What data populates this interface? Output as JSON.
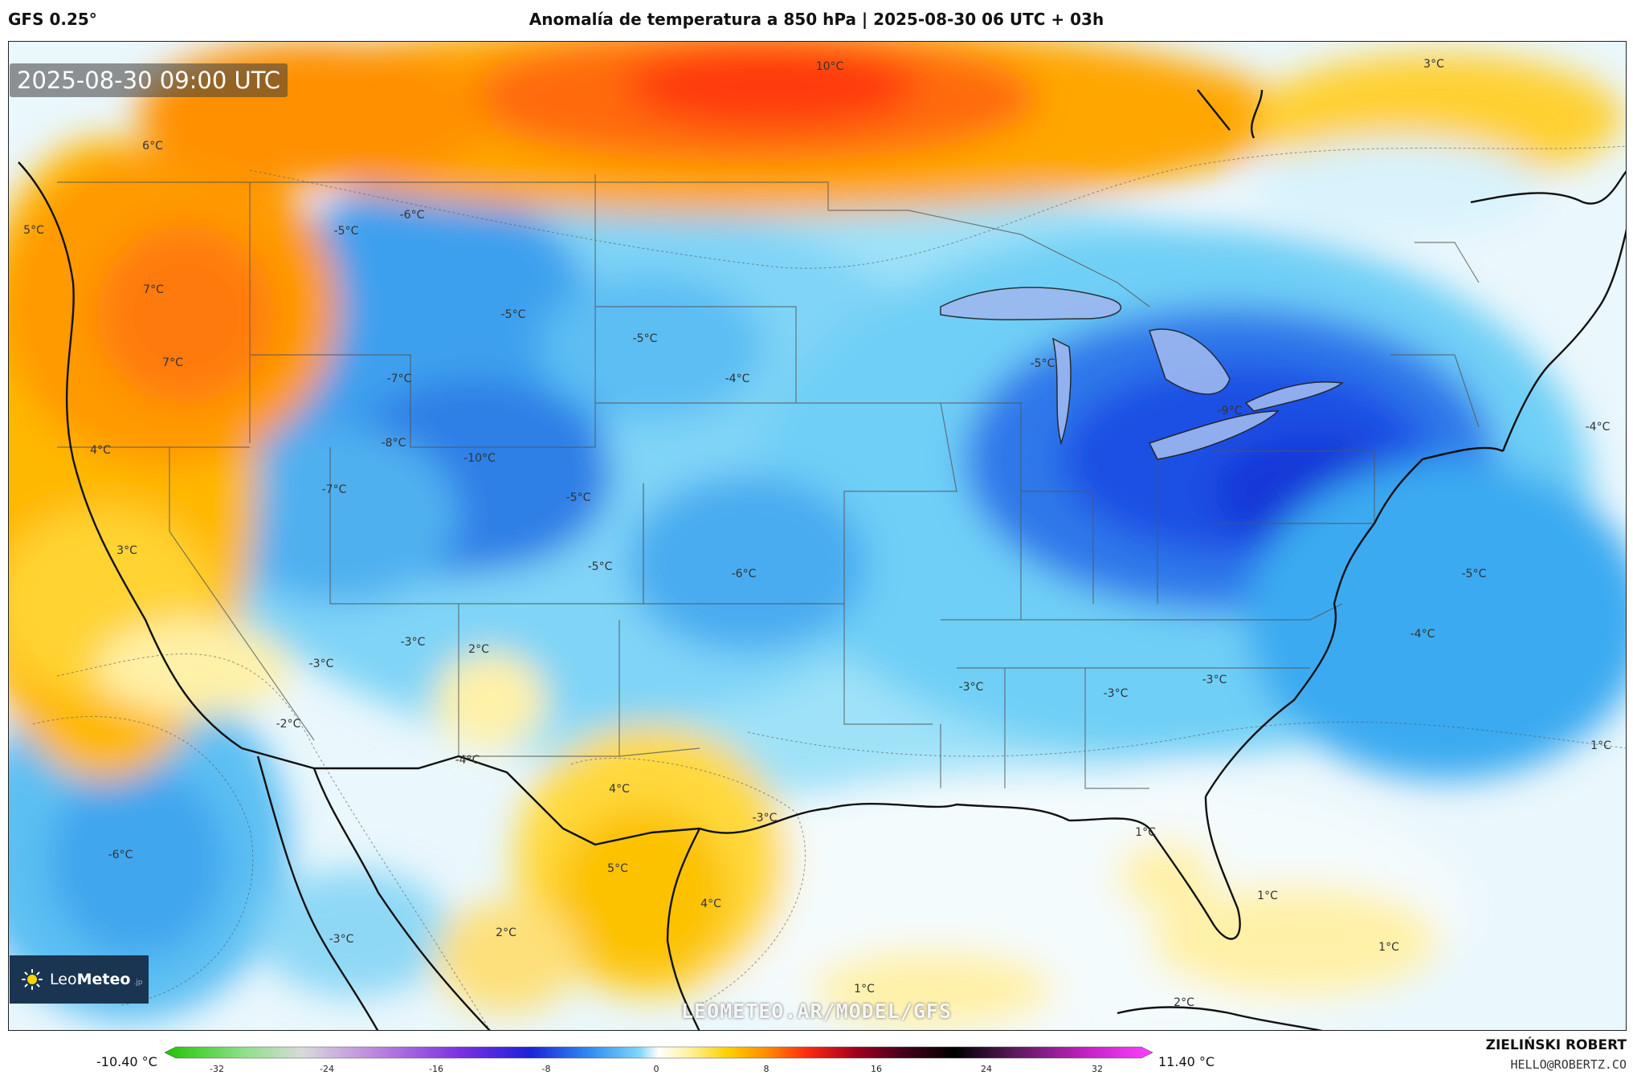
{
  "header": {
    "model": "GFS 0.25°",
    "title": "Anomalía de temperatura a 850 hPa | 2025-08-30 06 UTC + 03h"
  },
  "map": {
    "timestamp": "2025-08-30 09:00 UTC",
    "watermark": "LEOMETEO.AR/MODEL/GFS",
    "logo": {
      "text_light": "Leo",
      "text_bold": "Meteo",
      "suffix": ".jp",
      "icon": "sun-logo-icon"
    },
    "contour_labels": [
      "10°C",
      "3°C",
      "6°C",
      "5°C",
      "-6°C",
      "-5°C",
      "7°C",
      "7°C",
      "-5°C",
      "-5°C",
      "-4°C",
      "-7°C",
      "-5°C",
      "-9°C",
      "4°C",
      "-8°C",
      "-10°C",
      "-7°C",
      "-5°C",
      "-4°C",
      "3°C",
      "-5°C",
      "-6°C",
      "-5°C",
      "-3°C",
      "-4°C",
      "2°C",
      "-3°C",
      "-3°C",
      "-3°C",
      "-3°C",
      "-2°C",
      "-4°C",
      "1°C",
      "4°C",
      "-3°C",
      "1°C",
      "-6°C",
      "5°C",
      "4°C",
      "1°C",
      "2°C",
      "1°C",
      "-3°C",
      "1°C",
      "2°C"
    ],
    "palette": {
      "deep_blue": "#1f3fe0",
      "blue": "#3a8cf0",
      "light_blue": "#5cc6f5",
      "pale_blue": "#b7ecfb",
      "white": "#ffffff",
      "pale_yellow": "#fff2a8",
      "yellow": "#fcd000",
      "orange": "#ff9e00",
      "red": "#ff4a10",
      "ocean_pale": "#eef7fb"
    }
  },
  "colorbar": {
    "min_label": "-10.40 °C",
    "max_label": "11.40 °C",
    "ticks": [
      "-32",
      "-24",
      "-16",
      "-8",
      "0",
      "8",
      "16",
      "24",
      "32"
    ]
  },
  "credits": {
    "name": "ZIELIŃSKI ROBERT",
    "email": "HELLO@ROBERTZ.CO"
  }
}
